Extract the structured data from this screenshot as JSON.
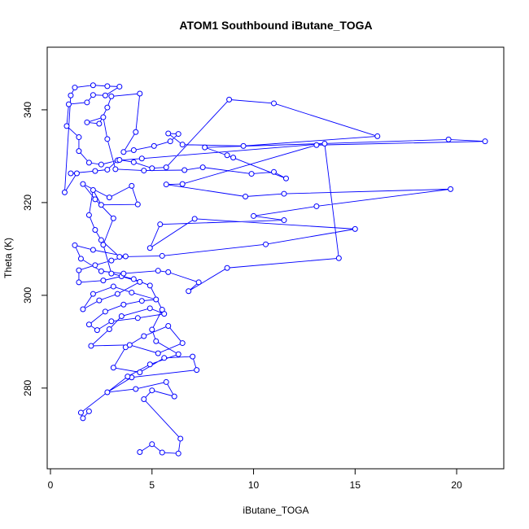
{
  "chart_data": {
    "type": "line",
    "title": "ATOM1 Southbound iButane_TOGA",
    "x_label": "iButane_TOGA",
    "y_label": "Theta (K)",
    "color": "#0000ff",
    "markers": true,
    "xlim": [
      -0.16,
      22.32
    ],
    "ylim": [
      262.6,
      353.5
    ],
    "xticks": [
      0,
      5,
      10,
      15,
      20
    ],
    "yticks": [
      280,
      300,
      320,
      340
    ],
    "x": [
      4.4,
      5.0,
      5.5,
      6.3,
      6.4,
      4.6,
      5.0,
      6.1,
      5.7,
      4.2,
      2.8,
      4.0,
      7.2,
      7.0,
      5.6,
      4.4,
      3.1,
      3.7,
      4.6,
      5.8,
      6.5,
      5.3,
      3.9,
      2.0,
      2.9,
      3.5,
      4.9,
      5.6,
      4.3,
      3.0,
      2.3,
      1.9,
      2.7,
      3.6,
      4.5,
      5.2,
      4.0,
      3.1,
      2.1,
      1.6,
      2.4,
      3.3,
      4.4,
      3.5,
      2.6,
      1.4,
      1.4,
      2.2,
      3.0,
      3.7,
      2.1,
      1.2,
      1.5,
      2.5,
      3.6,
      5.3,
      5.8,
      7.3,
      6.8,
      8.7,
      14.2,
      13.5,
      4.5,
      3.3,
      2.8,
      2.2,
      1.0,
      1.3,
      0.7,
      1.0,
      1.2,
      2.1,
      2.8,
      3.4,
      2.7,
      2.1,
      1.8,
      0.9,
      0.8,
      1.4,
      1.4,
      1.9,
      2.5,
      3.4,
      4.1,
      5.0,
      5.7,
      8.8,
      11.0,
      16.1,
      9.5,
      6.5,
      5.8,
      6.3,
      5.9,
      5.1,
      4.1,
      3.6,
      4.2,
      4.4,
      3.0,
      2.8,
      2.4,
      1.8,
      2.6,
      2.8,
      3.2,
      4.6,
      6.6,
      7.5,
      9.9,
      11.0,
      11.6,
      8.7,
      9.0,
      7.6,
      19.6,
      21.4,
      13.1,
      6.5,
      5.7,
      9.6,
      11.5,
      19.7,
      13.1,
      10.0,
      11.5,
      5.4,
      4.9,
      7.1,
      15.0,
      10.6,
      5.5,
      3.4,
      2.5,
      2.2,
      1.9,
      2.1,
      2.5,
      4.3,
      4.0,
      2.9,
      1.6,
      2.2,
      3.1,
      2.6,
      3.0,
      4.1,
      4.9,
      5.5,
      5.0,
      5.2,
      6.3,
      4.9,
      3.8,
      1.5,
      1.6,
      1.9
    ],
    "series": [
      {
        "name": "Theta (K)",
        "values": [
          266.2,
          267.9,
          266.1,
          265.9,
          269.1,
          277.6,
          279.5,
          278.2,
          281.3,
          279.8,
          279.1,
          282.3,
          283.9,
          286.8,
          286.5,
          283.4,
          284.4,
          288.8,
          291.2,
          293.4,
          289.7,
          287.5,
          289.3,
          289.1,
          292.7,
          295.5,
          297.2,
          296.0,
          295.1,
          294.4,
          292.5,
          293.7,
          296.5,
          298.0,
          298.8,
          299.1,
          300.6,
          301.9,
          300.3,
          297.0,
          298.9,
          300.3,
          302.9,
          304.1,
          303.2,
          302.8,
          305.4,
          306.5,
          307.5,
          308.4,
          309.8,
          310.8,
          307.9,
          305.2,
          304.7,
          305.3,
          305.0,
          302.8,
          300.9,
          305.9,
          308.0,
          332.7,
          329.5,
          329.1,
          327.1,
          326.8,
          326.3,
          326.3,
          322.2,
          343.1,
          344.8,
          345.3,
          345.1,
          345.0,
          343.1,
          343.2,
          341.6,
          341.2,
          336.5,
          334.1,
          331.1,
          328.6,
          328.2,
          329.2,
          328.7,
          327.4,
          327.6,
          342.2,
          341.4,
          334.3,
          332.2,
          332.5,
          334.9,
          334.8,
          333.2,
          332.2,
          331.3,
          330.9,
          335.2,
          343.5,
          342.9,
          340.5,
          337.0,
          337.3,
          338.4,
          333.7,
          327.2,
          326.9,
          327.0,
          327.6,
          326.2,
          326.6,
          325.2,
          330.2,
          329.7,
          331.9,
          333.6,
          333.2,
          332.4,
          324.0,
          323.9,
          321.3,
          321.9,
          322.9,
          319.2,
          317.1,
          316.2,
          315.3,
          310.2,
          316.5,
          314.3,
          311.0,
          308.5,
          308.3,
          311.9,
          314.1,
          317.3,
          322.7,
          319.5,
          319.6,
          323.6,
          321.1,
          324.0,
          320.7,
          316.6,
          310.9,
          304.7,
          303.5,
          302.1,
          296.9,
          292.6,
          290.1,
          287.3,
          285.1,
          282.5,
          274.7,
          273.5,
          275.0
        ]
      }
    ]
  }
}
